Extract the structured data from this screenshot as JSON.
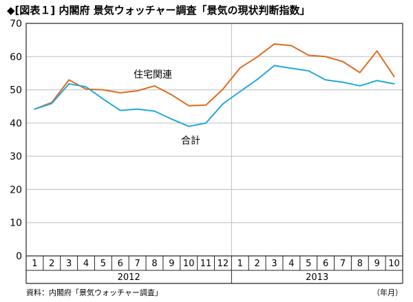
{
  "header": {
    "title": "◆[図表１] 内閣府 景気ウォッチャー調査「景気の現状判断指数」"
  },
  "footer": {
    "source": "資料：内閣府「景気ウォッチャー調査」",
    "unit": "（年月）"
  },
  "chart_data": {
    "type": "line",
    "title": "◆[図表１] 内閣府 景気ウォッチャー調査「景気の現状判断指数」",
    "ylim": [
      0,
      70
    ],
    "yticks": [
      0,
      10,
      20,
      30,
      40,
      50,
      60,
      70
    ],
    "grid": "horizontal",
    "years": [
      {
        "label": "2012",
        "months": [
          "1",
          "2",
          "3",
          "4",
          "5",
          "6",
          "7",
          "8",
          "9",
          "10",
          "11",
          "12"
        ]
      },
      {
        "label": "2013",
        "months": [
          "1",
          "2",
          "3",
          "4",
          "5",
          "6",
          "7",
          "8",
          "9",
          "10"
        ]
      }
    ],
    "x": [
      "2012-01",
      "2012-02",
      "2012-03",
      "2012-04",
      "2012-05",
      "2012-06",
      "2012-07",
      "2012-08",
      "2012-09",
      "2012-10",
      "2012-11",
      "2012-12",
      "2013-01",
      "2013-02",
      "2013-03",
      "2013-04",
      "2013-05",
      "2013-06",
      "2013-07",
      "2013-08",
      "2013-09",
      "2013-10"
    ],
    "series": [
      {
        "name": "住宅関連",
        "color": "#e06a1b",
        "values": [
          44.2,
          46.2,
          53.0,
          50.2,
          50.0,
          49.1,
          49.7,
          51.2,
          48.5,
          45.2,
          45.4,
          50.2,
          56.6,
          59.9,
          63.8,
          63.3,
          60.4,
          60.0,
          58.5,
          55.2,
          61.7,
          54.0
        ]
      },
      {
        "name": "合計",
        "color": "#1fa8dc",
        "values": [
          44.2,
          45.9,
          51.8,
          50.9,
          47.2,
          43.8,
          44.2,
          43.6,
          41.2,
          39.0,
          40.0,
          45.8,
          49.5,
          53.1,
          57.3,
          56.5,
          55.7,
          53.0,
          52.3,
          51.2,
          52.8,
          51.8
        ]
      }
    ]
  }
}
